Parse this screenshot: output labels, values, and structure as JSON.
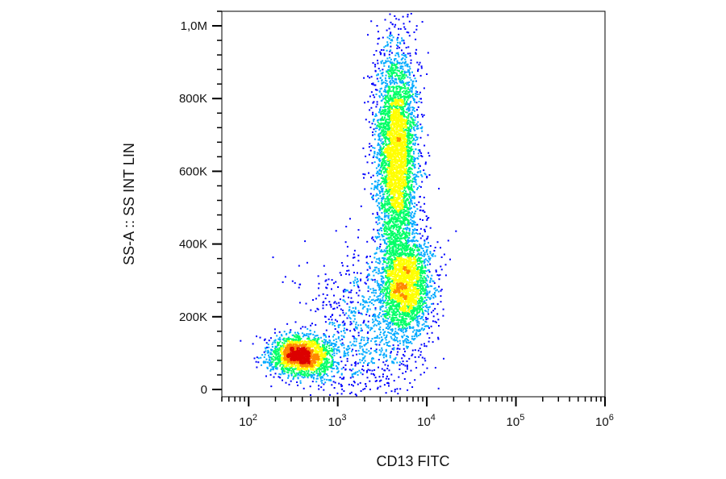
{
  "chart_data": {
    "type": "scatter",
    "subtype": "flow-cytometry density dot plot",
    "title": "",
    "xlabel": "CD13 FITC",
    "ylabel": "SS-A :: SS INT LIN",
    "x_scale": "log",
    "y_scale": "linear",
    "xlim": [
      50,
      1000000
    ],
    "ylim": [
      -20000,
      1040000
    ],
    "x_ticks": [
      {
        "value": 100,
        "base": "10",
        "exp": "2"
      },
      {
        "value": 1000,
        "base": "10",
        "exp": "3"
      },
      {
        "value": 10000,
        "base": "10",
        "exp": "4"
      },
      {
        "value": 100000,
        "base": "10",
        "exp": "5"
      },
      {
        "value": 1000000,
        "base": "10",
        "exp": "6"
      }
    ],
    "y_ticks": [
      {
        "value": 0,
        "label": "0"
      },
      {
        "value": 200000,
        "label": "200K"
      },
      {
        "value": 400000,
        "label": "400K"
      },
      {
        "value": 600000,
        "label": "600K"
      },
      {
        "value": 800000,
        "label": "800K"
      },
      {
        "value": 1000000,
        "label": "1,0M"
      }
    ],
    "grid": false,
    "colormap": [
      "#0000ff",
      "#00aaff",
      "#00ff66",
      "#ffff00",
      "#ff8800",
      "#dd0000"
    ],
    "populations": [
      {
        "x_center": 380,
        "y_center": 95000,
        "x_spread_decades": 0.17,
        "y_spread": 28000,
        "rel_size": 0.22
      },
      {
        "x_center": 4500,
        "y_center": 650000,
        "x_spread_decades": 0.12,
        "y_spread": 150000,
        "rel_size": 0.42
      },
      {
        "x_center": 5500,
        "y_center": 290000,
        "x_spread_decades": 0.15,
        "y_spread": 70000,
        "rel_size": 0.26
      },
      {
        "x_center": 1800,
        "y_center": 150000,
        "x_spread_decades": 0.35,
        "y_spread": 110000,
        "rel_size": 0.1
      }
    ]
  }
}
